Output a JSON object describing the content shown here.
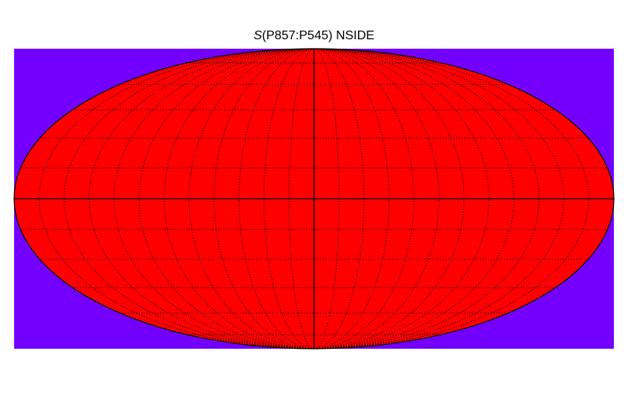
{
  "title": {
    "symbol": "S",
    "text": "(P857:P545) NSIDE"
  },
  "map": {
    "projection": "mollweide",
    "background_color": "#7300ff",
    "fill_color": "#ff0000",
    "graticule": {
      "meridian_spacing_deg": 15,
      "parallel_spacing_deg": 15,
      "style": "dotted"
    },
    "axes_lines": [
      "equator",
      "central-meridian"
    ]
  }
}
